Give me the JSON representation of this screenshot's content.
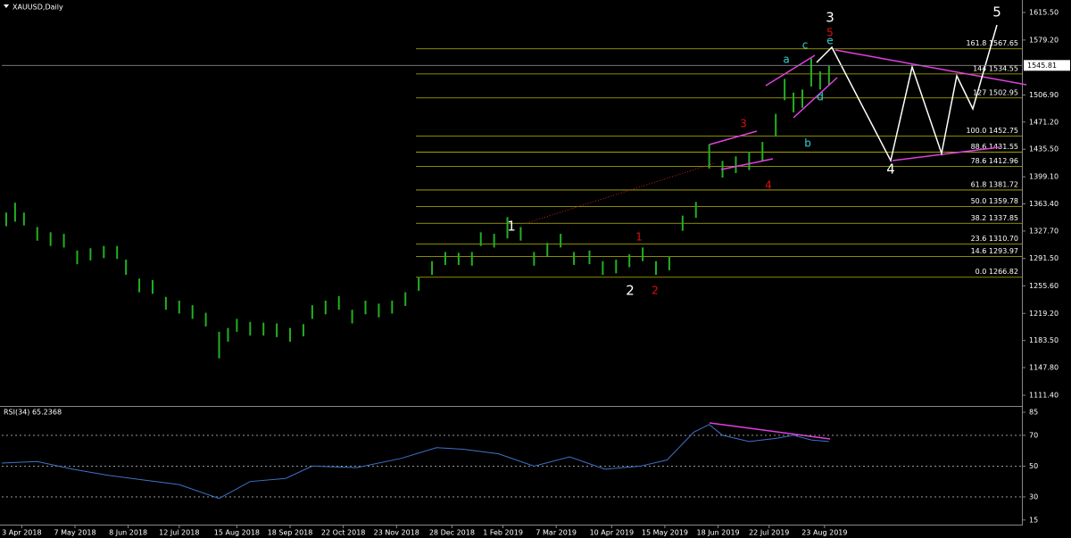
{
  "chart_data": [
    {
      "type": "range",
      "title": "XAUUSD,Daily",
      "color": "#22b022",
      "x": [
        2,
        6,
        10,
        16,
        22,
        28,
        34,
        40,
        46,
        52,
        56,
        62,
        68,
        74,
        80,
        86,
        92,
        98,
        102,
        106,
        112,
        118,
        124,
        130,
        136,
        140,
        146,
        152,
        158,
        164,
        170,
        176,
        182,
        188,
        194,
        200,
        206,
        212,
        216,
        222,
        228,
        234,
        240,
        246,
        252,
        258,
        265,
        271,
        277,
        283,
        289,
        295,
        301,
        307,
        313,
        319,
        325,
        331,
        337,
        343,
        349,
        353,
        357,
        361,
        365,
        369,
        373
      ],
      "series": [
        {
          "name": "High",
          "values": [
            1352,
            1365,
            1352,
            1333,
            1326,
            1324,
            1302,
            1305,
            1308,
            1308,
            1290,
            1265,
            1263,
            1241,
            1236,
            1230,
            1220,
            1195,
            1200,
            1212,
            1208,
            1207,
            1206,
            1200,
            1205,
            1230,
            1236,
            1242,
            1224,
            1236,
            1232,
            1236,
            1247,
            1267,
            1288,
            1300,
            1299,
            1300,
            1326,
            1324,
            1346,
            1333,
            1300,
            1312,
            1324,
            1300,
            1302,
            1288,
            1290,
            1297,
            1306,
            1288,
            1294,
            1348,
            1366,
            1442,
            1420,
            1426,
            1432,
            1445,
            1482,
            1528,
            1510,
            1514,
            1555,
            1538,
            1545
          ]
        },
        {
          "name": "Low",
          "values": [
            1334,
            1340,
            1335,
            1315,
            1308,
            1306,
            1284,
            1289,
            1292,
            1291,
            1270,
            1247,
            1245,
            1224,
            1219,
            1212,
            1202,
            1160,
            1182,
            1195,
            1190,
            1190,
            1188,
            1182,
            1189,
            1212,
            1218,
            1224,
            1206,
            1218,
            1214,
            1219,
            1229,
            1249,
            1270,
            1283,
            1283,
            1282,
            1308,
            1306,
            1318,
            1315,
            1282,
            1294,
            1306,
            1283,
            1284,
            1270,
            1272,
            1280,
            1288,
            1270,
            1276,
            1328,
            1345,
            1410,
            1398,
            1404,
            1408,
            1420,
            1452,
            1500,
            1484,
            1490,
            1518,
            1514,
            1520
          ]
        }
      ],
      "xlim": [
        0,
        460
      ],
      "ylim": [
        1097.3,
        1629.6
      ],
      "yticks": [
        {
          "value": 1615.5,
          "label": "1615.50"
        },
        {
          "value": 1579.2,
          "label": "1579.20"
        },
        {
          "value": 1506.9,
          "label": "1506.90"
        },
        {
          "value": 1471.2,
          "label": "1471.20"
        },
        {
          "value": 1435.5,
          "label": "1435.50"
        },
        {
          "value": 1399.1,
          "label": "1399.10"
        },
        {
          "value": 1363.4,
          "label": "1363.40"
        },
        {
          "value": 1327.7,
          "label": "1327.70"
        },
        {
          "value": 1291.5,
          "label": "1291.50"
        },
        {
          "value": 1255.6,
          "label": "1255.60"
        },
        {
          "value": 1219.2,
          "label": "1219.20"
        },
        {
          "value": 1183.5,
          "label": "1183.50"
        },
        {
          "value": 1147.8,
          "label": "1147.80"
        },
        {
          "value": 1111.4,
          "label": "1111.40"
        }
      ],
      "current_price": 1545.81,
      "fib_color": "#b8b800",
      "fib_levels": [
        {
          "value": 1567.65,
          "label": "161.8 1567.65"
        },
        {
          "value": 1534.55,
          "label": "144 1534.55"
        },
        {
          "value": 1502.95,
          "label": "127 1502.95"
        },
        {
          "value": 1452.75,
          "label": "100.0 1452.75"
        },
        {
          "value": 1431.55,
          "label": "88.6 1431.55"
        },
        {
          "value": 1412.96,
          "label": "78.6 1412.96"
        },
        {
          "value": 1381.72,
          "label": "61.8 1381.72"
        },
        {
          "value": 1359.78,
          "label": "50.0 1359.78"
        },
        {
          "value": 1337.85,
          "label": "38.2 1337.85"
        },
        {
          "value": 1310.7,
          "label": "23.6 1310.70"
        },
        {
          "value": 1293.97,
          "label": "14.6 1293.97"
        },
        {
          "value": 1266.82,
          "label": "0.0 1266.82"
        }
      ],
      "annotations": [
        {
          "text": "1",
          "color": "#ffffff"
        },
        {
          "text": "2",
          "color": "#ffffff"
        },
        {
          "text": "3",
          "color": "#ffffff"
        },
        {
          "text": "4",
          "color": "#ffffff"
        },
        {
          "text": "5",
          "color": "#ffffff"
        },
        {
          "text": "1",
          "color": "#e01010"
        },
        {
          "text": "2",
          "color": "#e01010"
        },
        {
          "text": "3",
          "color": "#e01010"
        },
        {
          "text": "4",
          "color": "#e01010"
        },
        {
          "text": "5",
          "color": "#e01010"
        },
        {
          "text": "a",
          "color": "#30d0d0"
        },
        {
          "text": "b",
          "color": "#30d0d0"
        },
        {
          "text": "c",
          "color": "#30d0d0"
        },
        {
          "text": "d",
          "color": "#30d0d0"
        },
        {
          "text": "e",
          "color": "#30d0d0"
        }
      ]
    },
    {
      "type": "line",
      "title": "RSI(34) 65.2368",
      "color": "#3f72c8",
      "x": [
        0,
        16,
        32,
        48,
        64,
        80,
        98,
        112,
        128,
        140,
        160,
        180,
        196,
        208,
        224,
        240,
        256,
        272,
        288,
        300,
        312,
        319,
        325,
        337,
        349,
        357,
        365,
        373
      ],
      "values": [
        52,
        53,
        48,
        44,
        41,
        38,
        29,
        40,
        42,
        50,
        49,
        55,
        62,
        61,
        58,
        50,
        56,
        48,
        50,
        54,
        72,
        77,
        70,
        66,
        68,
        70,
        67,
        66
      ],
      "xlim": [
        0,
        460
      ],
      "ylim": [
        12,
        88.5
      ],
      "yticks": [
        85,
        70,
        50,
        30,
        15
      ],
      "levels": [
        70,
        50,
        30
      ],
      "xticks": [
        {
          "value": 9,
          "label": "3 Apr 2018"
        },
        {
          "value": 33,
          "label": "7 May 2018"
        },
        {
          "value": 57,
          "label": "8 Jun 2018"
        },
        {
          "value": 80,
          "label": "12 Jul 2018"
        },
        {
          "value": 106,
          "label": "15 Aug 2018"
        },
        {
          "value": 130,
          "label": "18 Sep 2018"
        },
        {
          "value": 154,
          "label": "22 Oct 2018"
        },
        {
          "value": 178,
          "label": "23 Nov 2018"
        },
        {
          "value": 203,
          "label": "28 Dec 2018"
        },
        {
          "value": 226,
          "label": "1 Feb 2019"
        },
        {
          "value": 250,
          "label": "7 Mar 2019"
        },
        {
          "value": 275,
          "label": "10 Apr 2019"
        },
        {
          "value": 299,
          "label": "15 May 2019"
        },
        {
          "value": 323,
          "label": "18 Jun 2019"
        },
        {
          "value": 346,
          "label": "22 Jul 2019"
        },
        {
          "value": 371,
          "label": "23 Aug 2019"
        }
      ]
    }
  ]
}
